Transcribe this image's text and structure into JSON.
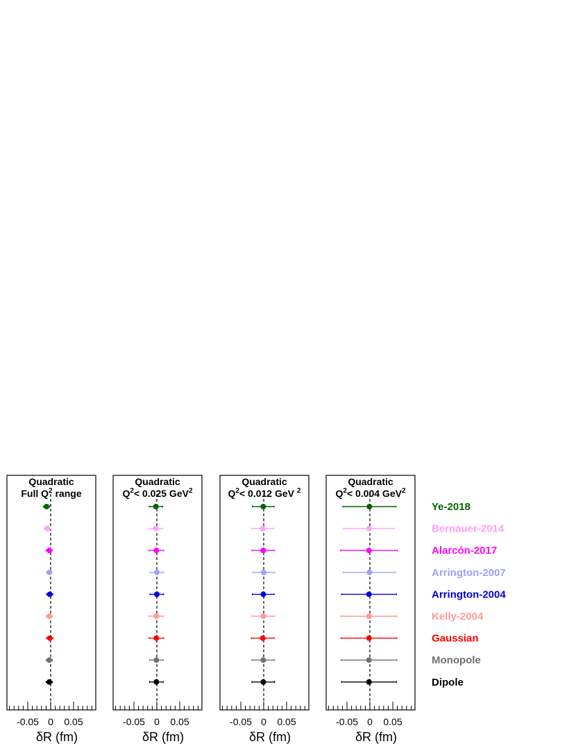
{
  "chart_data": {
    "type": "scatter",
    "layout": "forest plot with horizontal error bars, four panels sharing one legend",
    "xlabel": "δR (fm)",
    "xticks": [
      "-0.05",
      "0",
      "0.05"
    ],
    "xlim": [
      -0.095,
      0.095
    ],
    "reference_line": {
      "x": 0,
      "style": "dashed",
      "color": "#000000"
    },
    "legend": {
      "placement": "right",
      "order_top_to_bottom": [
        "Ye-2018",
        "Bernauer-2014",
        "Alarcón-2017",
        "Arrington-2007",
        "Arrington-2004",
        "Kelly-2004",
        "Gaussian",
        "Monopole",
        "Dipole"
      ]
    },
    "series": [
      {
        "name": "Ye-2018",
        "color": "#006400"
      },
      {
        "name": "Bernauer-2014",
        "color": "#ffa0ff"
      },
      {
        "name": "Alarcón-2017",
        "color": "#ff00ff"
      },
      {
        "name": "Arrington-2007",
        "color": "#a0a0ff"
      },
      {
        "name": "Arrington-2004",
        "color": "#0000e0"
      },
      {
        "name": "Kelly-2004",
        "color": "#ff9a9a"
      },
      {
        "name": "Gaussian",
        "color": "#ff0000"
      },
      {
        "name": "Monopole",
        "color": "#707070"
      },
      {
        "name": "Dipole",
        "color": "#000000"
      }
    ],
    "panels": [
      {
        "title_line1": "Quadratic",
        "title_line2": {
          "pre": "Full Q",
          "sup": "2",
          "post": " range",
          "sup2": ""
        },
        "points": [
          {
            "series": "Ye-2018",
            "x": -0.009,
            "xerr": 0.007
          },
          {
            "series": "Bernauer-2014",
            "x": -0.007,
            "xerr": 0.007
          },
          {
            "series": "Alarcón-2017",
            "x": -0.003,
            "xerr": 0.007
          },
          {
            "series": "Arrington-2007",
            "x": -0.003,
            "xerr": 0.006
          },
          {
            "series": "Arrington-2004",
            "x": -0.002,
            "xerr": 0.007
          },
          {
            "series": "Kelly-2004",
            "x": -0.003,
            "xerr": 0.007
          },
          {
            "series": "Gaussian",
            "x": -0.002,
            "xerr": 0.007
          },
          {
            "series": "Monopole",
            "x": -0.003,
            "xerr": 0.007
          },
          {
            "series": "Dipole",
            "x": -0.003,
            "xerr": 0.007
          }
        ]
      },
      {
        "title_line1": "Quadratic",
        "title_line2": {
          "pre": "Q",
          "sup": "2",
          "post": "< 0.025 GeV",
          "sup2": "2"
        },
        "points": [
          {
            "series": "Ye-2018",
            "x": -0.002,
            "xerr": 0.015
          },
          {
            "series": "Bernauer-2014",
            "x": -0.002,
            "xerr": 0.015
          },
          {
            "series": "Alarcón-2017",
            "x": -0.001,
            "xerr": 0.016
          },
          {
            "series": "Arrington-2007",
            "x": 0.0,
            "xerr": 0.015
          },
          {
            "series": "Arrington-2004",
            "x": 0.0,
            "xerr": 0.015
          },
          {
            "series": "Kelly-2004",
            "x": -0.001,
            "xerr": 0.016
          },
          {
            "series": "Gaussian",
            "x": -0.001,
            "xerr": 0.016
          },
          {
            "series": "Monopole",
            "x": -0.001,
            "xerr": 0.015
          },
          {
            "series": "Dipole",
            "x": -0.001,
            "xerr": 0.015
          }
        ]
      },
      {
        "title_line1": "Quadratic",
        "title_line2": {
          "pre": "Q",
          "sup": "2",
          "post": "< 0.012 GeV ",
          "sup2": "2"
        },
        "points": [
          {
            "series": "Ye-2018",
            "x": -0.001,
            "xerr": 0.024
          },
          {
            "series": "Bernauer-2014",
            "x": -0.002,
            "xerr": 0.024
          },
          {
            "series": "Alarcón-2017",
            "x": -0.001,
            "xerr": 0.025
          },
          {
            "series": "Arrington-2007",
            "x": 0.0,
            "xerr": 0.024
          },
          {
            "series": "Arrington-2004",
            "x": -0.001,
            "xerr": 0.024
          },
          {
            "series": "Kelly-2004",
            "x": -0.001,
            "xerr": 0.025
          },
          {
            "series": "Gaussian",
            "x": -0.002,
            "xerr": 0.025
          },
          {
            "series": "Monopole",
            "x": -0.001,
            "xerr": 0.025
          },
          {
            "series": "Dipole",
            "x": -0.001,
            "xerr": 0.025
          }
        ]
      },
      {
        "title_line1": "Quadratic",
        "title_line2": {
          "pre": "Q",
          "sup": "2",
          "post": "< 0.004 GeV",
          "sup2": "2"
        },
        "points": [
          {
            "series": "Ye-2018",
            "x": -0.001,
            "xerr": 0.058
          },
          {
            "series": "Bernauer-2014",
            "x": -0.002,
            "xerr": 0.056
          },
          {
            "series": "Alarcón-2017",
            "x": -0.002,
            "xerr": 0.062
          },
          {
            "series": "Arrington-2007",
            "x": -0.001,
            "xerr": 0.057
          },
          {
            "series": "Arrington-2004",
            "x": -0.002,
            "xerr": 0.06
          },
          {
            "series": "Kelly-2004",
            "x": -0.002,
            "xerr": 0.061
          },
          {
            "series": "Gaussian",
            "x": -0.002,
            "xerr": 0.061
          },
          {
            "series": "Monopole",
            "x": -0.002,
            "xerr": 0.061
          },
          {
            "series": "Dipole",
            "x": -0.002,
            "xerr": 0.06
          }
        ]
      }
    ]
  }
}
